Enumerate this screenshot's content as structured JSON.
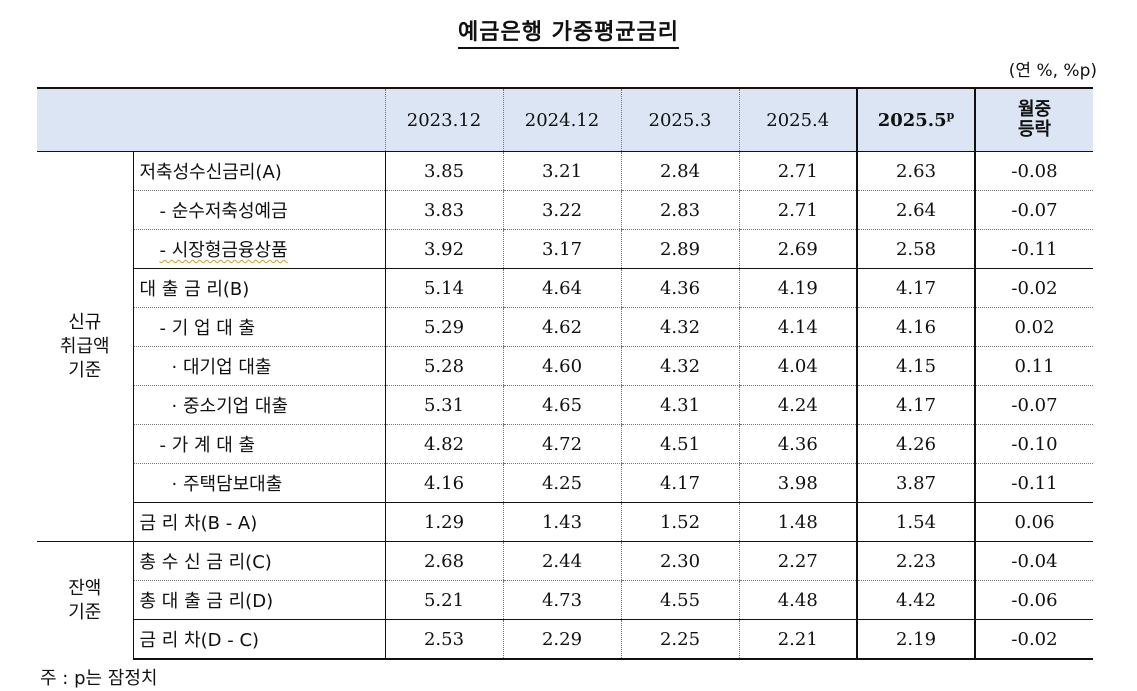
{
  "title": "예금은행 가중평균금리",
  "unit": "(연 %, %p)",
  "columns": {
    "c1": "2023.12",
    "c2": "2024.12",
    "c3": "2025.3",
    "c4": "2025.4",
    "c5": "2025.5",
    "c5_sup": "p",
    "c6_line1": "월중",
    "c6_line2": "등락"
  },
  "groups": {
    "new_line1": "신규",
    "new_line2": "취급액",
    "new_line3": "기준",
    "bal_line1": "잔액",
    "bal_line2": "기준"
  },
  "rows": [
    {
      "label": "저축성수신금리(A)",
      "values": [
        "3.85",
        "3.21",
        "2.84",
        "2.71",
        "2.63",
        "-0.08"
      ]
    },
    {
      "label": "- 순수저축성예금",
      "values": [
        "3.83",
        "3.22",
        "2.83",
        "2.71",
        "2.64",
        "-0.07"
      ]
    },
    {
      "label": "- 시장형금융상품",
      "values": [
        "3.92",
        "3.17",
        "2.89",
        "2.69",
        "2.58",
        "-0.11"
      ]
    },
    {
      "label": "대 출 금 리(B)",
      "values": [
        "5.14",
        "4.64",
        "4.36",
        "4.19",
        "4.17",
        "-0.02"
      ]
    },
    {
      "label": "- 기 업 대 출",
      "values": [
        "5.29",
        "4.62",
        "4.32",
        "4.14",
        "4.16",
        "0.02"
      ]
    },
    {
      "label": "· 대기업 대출",
      "values": [
        "5.28",
        "4.60",
        "4.32",
        "4.04",
        "4.15",
        "0.11"
      ]
    },
    {
      "label": "· 중소기업 대출",
      "values": [
        "5.31",
        "4.65",
        "4.31",
        "4.24",
        "4.17",
        "-0.07"
      ]
    },
    {
      "label": "- 가 계 대 출",
      "values": [
        "4.82",
        "4.72",
        "4.51",
        "4.36",
        "4.26",
        "-0.10"
      ]
    },
    {
      "label": "· 주택담보대출",
      "values": [
        "4.16",
        "4.25",
        "4.17",
        "3.98",
        "3.87",
        "-0.11"
      ]
    },
    {
      "label": "금 리 차(B - A)",
      "values": [
        "1.29",
        "1.43",
        "1.52",
        "1.48",
        "1.54",
        "0.06"
      ]
    },
    {
      "label": "총 수 신 금 리(C)",
      "values": [
        "2.68",
        "2.44",
        "2.30",
        "2.27",
        "2.23",
        "-0.04"
      ]
    },
    {
      "label": "총 대 출 금 리(D)",
      "values": [
        "5.21",
        "4.73",
        "4.55",
        "4.48",
        "4.42",
        "-0.06"
      ]
    },
    {
      "label": "금 리 차(D - C)",
      "values": [
        "2.53",
        "2.29",
        "2.25",
        "2.21",
        "2.19",
        "-0.02"
      ]
    }
  ],
  "note": "주 : p는 잠정치"
}
